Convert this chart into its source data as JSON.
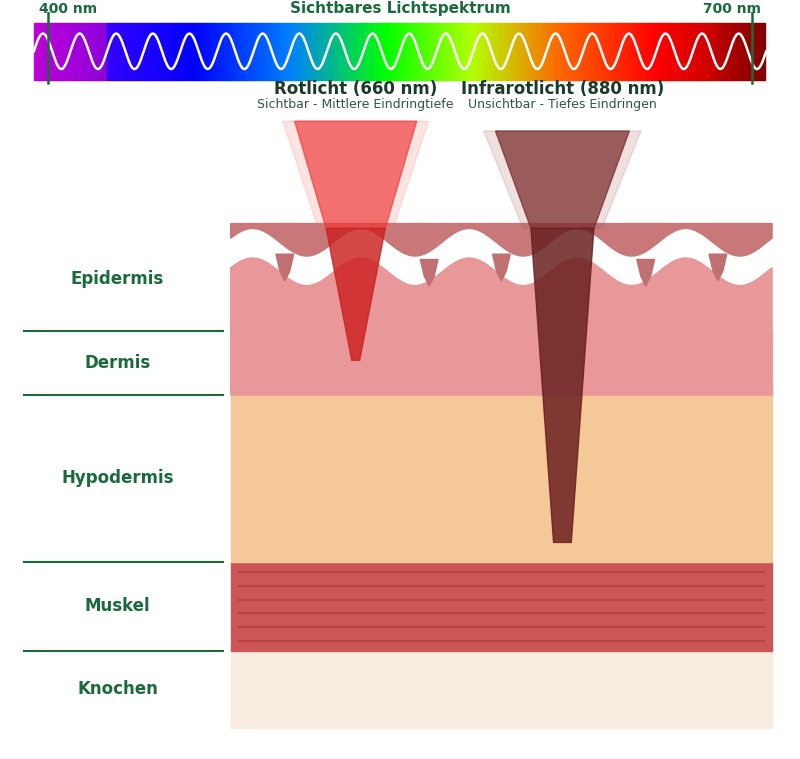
{
  "bg_color": "#ffffff",
  "spectrum_label": "Sichtbares Lichtspektrum",
  "spectrum_left_label": "400 nm",
  "spectrum_right_label": "700 nm",
  "spectrum_label_color": "#1a6b3c",
  "red_light_title": "Rotlicht (660 nm)",
  "red_light_subtitle": "Sichtbar - Mittlere Eindringtiefe",
  "ir_light_title": "Infrarotlicht (880 nm)",
  "ir_light_subtitle": "Unsichtbar - Tiefes Eindringen",
  "title_color": "#1a3a2a",
  "subtitle_color": "#2d5a3d",
  "layer_labels": [
    "Epidermis",
    "Dermis",
    "Hypodermis",
    "Muskel",
    "Knochen"
  ],
  "layer_label_color": "#1a6b3c",
  "divider_color": "#1a6b3c",
  "wave_color": "#ffffff"
}
